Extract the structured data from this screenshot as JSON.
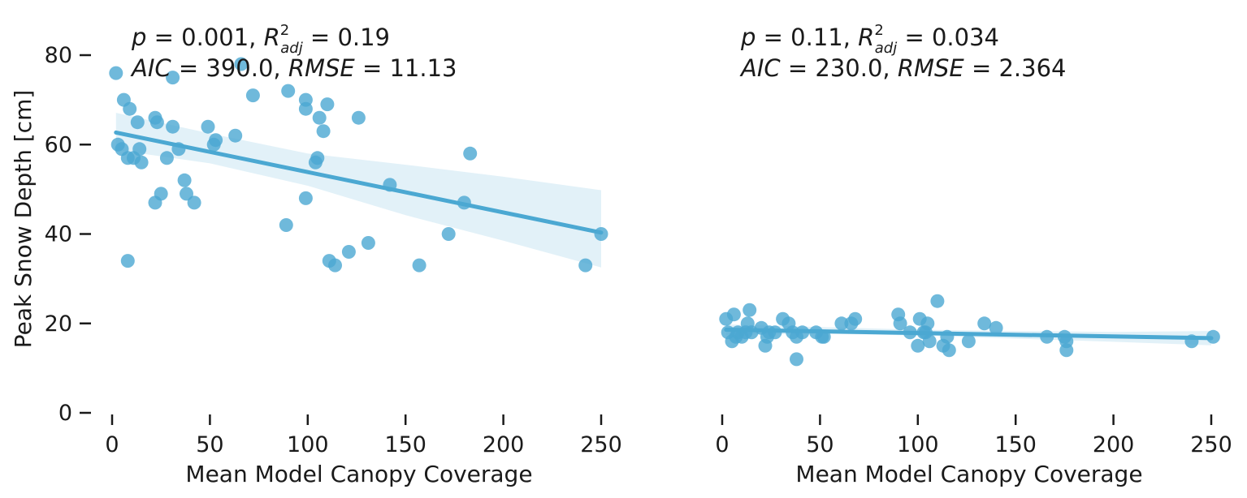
{
  "chart_data": [
    {
      "type": "scatter",
      "panel": "left",
      "xlabel": "Mean Model Canopy Coverage",
      "ylabel": "Peak Snow Depth [cm]",
      "xlim": [
        -10,
        260
      ],
      "ylim": [
        0,
        85
      ],
      "xticks": [
        0,
        50,
        100,
        150,
        200,
        250
      ],
      "yticks": [
        0,
        20,
        40,
        60,
        80
      ],
      "grid": false,
      "annotation": {
        "line1": {
          "p_label": "p",
          "p_rest": " = 0.001, ",
          "r_label": "R",
          "r_sup": "2",
          "r_sub": "adj",
          "r_rest": " = 0.19"
        },
        "line2": {
          "aic_label": "AIC",
          "aic_rest": " = 390.0, ",
          "rmse_label": "RMSE",
          "rmse_rest": " = 11.13"
        }
      },
      "color": "#4ba8d2",
      "fit": {
        "x": [
          2,
          250
        ],
        "y": [
          62.7,
          40.3
        ]
      },
      "ci_band": [
        {
          "x": 2,
          "lo": 58.8,
          "hi": 67.1
        },
        {
          "x": 50,
          "lo": 55.8,
          "hi": 62.5
        },
        {
          "x": 100,
          "lo": 50.8,
          "hi": 58.0
        },
        {
          "x": 150,
          "lo": 44.2,
          "hi": 55.5
        },
        {
          "x": 200,
          "lo": 38.5,
          "hi": 52.8
        },
        {
          "x": 250,
          "lo": 32.5,
          "hi": 49.8
        }
      ],
      "points": [
        {
          "x": 2,
          "y": 76
        },
        {
          "x": 3,
          "y": 60
        },
        {
          "x": 5,
          "y": 59
        },
        {
          "x": 6,
          "y": 70
        },
        {
          "x": 8,
          "y": 57
        },
        {
          "x": 9,
          "y": 68
        },
        {
          "x": 11,
          "y": 57
        },
        {
          "x": 13,
          "y": 65
        },
        {
          "x": 14,
          "y": 59
        },
        {
          "x": 15,
          "y": 56
        },
        {
          "x": 8,
          "y": 34
        },
        {
          "x": 22,
          "y": 66
        },
        {
          "x": 23,
          "y": 65
        },
        {
          "x": 22,
          "y": 47
        },
        {
          "x": 25,
          "y": 49
        },
        {
          "x": 28,
          "y": 57
        },
        {
          "x": 31,
          "y": 75
        },
        {
          "x": 31,
          "y": 64
        },
        {
          "x": 34,
          "y": 59
        },
        {
          "x": 37,
          "y": 52
        },
        {
          "x": 38,
          "y": 49
        },
        {
          "x": 42,
          "y": 47
        },
        {
          "x": 49,
          "y": 64
        },
        {
          "x": 52,
          "y": 60
        },
        {
          "x": 53,
          "y": 61
        },
        {
          "x": 63,
          "y": 62
        },
        {
          "x": 66,
          "y": 78
        },
        {
          "x": 72,
          "y": 71
        },
        {
          "x": 90,
          "y": 72
        },
        {
          "x": 89,
          "y": 42
        },
        {
          "x": 99,
          "y": 70
        },
        {
          "x": 99,
          "y": 68
        },
        {
          "x": 99,
          "y": 48
        },
        {
          "x": 104,
          "y": 56
        },
        {
          "x": 105,
          "y": 57
        },
        {
          "x": 106,
          "y": 66
        },
        {
          "x": 108,
          "y": 63
        },
        {
          "x": 110,
          "y": 69
        },
        {
          "x": 111,
          "y": 34
        },
        {
          "x": 114,
          "y": 33
        },
        {
          "x": 121,
          "y": 36
        },
        {
          "x": 126,
          "y": 66
        },
        {
          "x": 131,
          "y": 38
        },
        {
          "x": 142,
          "y": 51
        },
        {
          "x": 157,
          "y": 33
        },
        {
          "x": 172,
          "y": 40
        },
        {
          "x": 180,
          "y": 47
        },
        {
          "x": 183,
          "y": 58
        },
        {
          "x": 242,
          "y": 33
        },
        {
          "x": 250,
          "y": 40
        }
      ]
    },
    {
      "type": "scatter",
      "panel": "right",
      "xlabel": "Mean Model Canopy Coverage",
      "ylabel": "",
      "xlim": [
        -10,
        260
      ],
      "ylim": [
        0,
        85
      ],
      "xticks": [
        0,
        50,
        100,
        150,
        200,
        250
      ],
      "yticks": [],
      "grid": false,
      "annotation": {
        "line1": {
          "p_label": "p",
          "p_rest": " = 0.11, ",
          "r_label": "R",
          "r_sup": "2",
          "r_sub": "adj",
          "r_rest": " = 0.034"
        },
        "line2": {
          "aic_label": "AIC",
          "aic_rest": " = 230.0, ",
          "rmse_label": "RMSE",
          "rmse_rest": " = 2.364"
        }
      },
      "color": "#4ba8d2",
      "fit": {
        "x": [
          2,
          250
        ],
        "y": [
          18.6,
          16.7
        ]
      },
      "ci_band": [
        {
          "x": 2,
          "lo": 17.4,
          "hi": 19.8
        },
        {
          "x": 50,
          "lo": 17.7,
          "hi": 19.2
        },
        {
          "x": 100,
          "lo": 17.3,
          "hi": 18.6
        },
        {
          "x": 150,
          "lo": 16.6,
          "hi": 18.3
        },
        {
          "x": 200,
          "lo": 15.9,
          "hi": 18.1
        },
        {
          "x": 250,
          "lo": 15.1,
          "hi": 18.3
        }
      ],
      "points": [
        {
          "x": 2,
          "y": 21
        },
        {
          "x": 3,
          "y": 18
        },
        {
          "x": 5,
          "y": 16
        },
        {
          "x": 6,
          "y": 22
        },
        {
          "x": 7,
          "y": 17
        },
        {
          "x": 8,
          "y": 18
        },
        {
          "x": 10,
          "y": 17
        },
        {
          "x": 12,
          "y": 18
        },
        {
          "x": 13,
          "y": 20
        },
        {
          "x": 14,
          "y": 23
        },
        {
          "x": 15,
          "y": 18
        },
        {
          "x": 20,
          "y": 19
        },
        {
          "x": 22,
          "y": 15
        },
        {
          "x": 23,
          "y": 17
        },
        {
          "x": 24,
          "y": 18
        },
        {
          "x": 27,
          "y": 18
        },
        {
          "x": 31,
          "y": 21
        },
        {
          "x": 34,
          "y": 20
        },
        {
          "x": 36,
          "y": 18
        },
        {
          "x": 38,
          "y": 17
        },
        {
          "x": 38,
          "y": 12
        },
        {
          "x": 41,
          "y": 18
        },
        {
          "x": 48,
          "y": 18
        },
        {
          "x": 51,
          "y": 17
        },
        {
          "x": 52,
          "y": 17
        },
        {
          "x": 61,
          "y": 20
        },
        {
          "x": 66,
          "y": 20
        },
        {
          "x": 68,
          "y": 21
        },
        {
          "x": 90,
          "y": 22
        },
        {
          "x": 91,
          "y": 20
        },
        {
          "x": 96,
          "y": 18
        },
        {
          "x": 100,
          "y": 15
        },
        {
          "x": 101,
          "y": 21
        },
        {
          "x": 103,
          "y": 18
        },
        {
          "x": 104,
          "y": 18
        },
        {
          "x": 105,
          "y": 20
        },
        {
          "x": 106,
          "y": 16
        },
        {
          "x": 110,
          "y": 25
        },
        {
          "x": 113,
          "y": 15
        },
        {
          "x": 115,
          "y": 17
        },
        {
          "x": 116,
          "y": 14
        },
        {
          "x": 126,
          "y": 16
        },
        {
          "x": 134,
          "y": 20
        },
        {
          "x": 140,
          "y": 19
        },
        {
          "x": 166,
          "y": 17
        },
        {
          "x": 175,
          "y": 17
        },
        {
          "x": 176,
          "y": 16
        },
        {
          "x": 176,
          "y": 14
        },
        {
          "x": 240,
          "y": 16
        },
        {
          "x": 251,
          "y": 17
        }
      ]
    }
  ]
}
